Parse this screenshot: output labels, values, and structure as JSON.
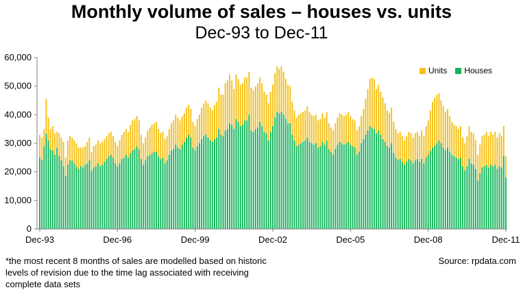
{
  "chart_data": {
    "type": "bar",
    "stacked": true,
    "title": "Monthly volume of sales – houses vs. units",
    "subtitle": "Dec-93 to Dec-11",
    "xlabel": "",
    "ylabel": "",
    "ylim": [
      0,
      60000
    ],
    "yticks": [
      "0",
      "10,000",
      "20,000",
      "30,000",
      "40,000",
      "50,000",
      "60,000"
    ],
    "x_ticks": [
      "Dec-93",
      "Dec-96",
      "Dec-99",
      "Dec-02",
      "Dec-05",
      "Dec-08",
      "Dec-11"
    ],
    "legend": [
      "Units",
      "Houses"
    ],
    "legend_position": "top-right",
    "grid": false,
    "colors": {
      "units": "#f5c018",
      "houses": "#14b45a",
      "axis": "#7f7f7f"
    },
    "months_start": "Dec-93",
    "months_end": "Dec-11",
    "series": [
      {
        "name": "Houses",
        "values": [
          25000,
          24000,
          29000,
          33500,
          31000,
          28000,
          27500,
          26000,
          28500,
          25500,
          24000,
          22000,
          18500,
          22500,
          24000,
          24000,
          23000,
          22000,
          21000,
          22000,
          21500,
          22500,
          23000,
          24000,
          20500,
          21500,
          22000,
          23000,
          22000,
          22500,
          23500,
          24500,
          25500,
          26000,
          25000,
          23000,
          22000,
          23000,
          24500,
          25000,
          26000,
          25000,
          26500,
          27500,
          28000,
          29000,
          28000,
          24500,
          22500,
          24000,
          25500,
          26000,
          26500,
          27000,
          27000,
          25500,
          24500,
          25000,
          23000,
          24000,
          26000,
          27500,
          28000,
          29500,
          28500,
          28000,
          29500,
          30500,
          32000,
          33000,
          32000,
          28500,
          27500,
          29000,
          30000,
          31500,
          32500,
          33000,
          32000,
          31000,
          30500,
          31500,
          32000,
          35000,
          33000,
          32500,
          34500,
          35000,
          37000,
          36500,
          35000,
          38500,
          37500,
          36000,
          36500,
          38000,
          38000,
          40000,
          34500,
          34000,
          35000,
          35500,
          37500,
          36000,
          34000,
          33500,
          31000,
          34000,
          36000,
          39000,
          41000,
          40500,
          41000,
          40000,
          38500,
          37000,
          37000,
          33000,
          31000,
          29000,
          29500,
          30000,
          30500,
          31000,
          32000,
          30500,
          30000,
          29500,
          30000,
          28500,
          29000,
          30500,
          29500,
          31000,
          28000,
          27000,
          26000,
          28000,
          29500,
          30500,
          30000,
          29500,
          30000,
          30500,
          29500,
          29000,
          28500,
          26000,
          27000,
          30000,
          31500,
          33000,
          34500,
          36000,
          35500,
          35000,
          33500,
          34500,
          33000,
          31500,
          30500,
          29000,
          28500,
          30000,
          26500,
          25000,
          24000,
          24500,
          23500,
          22500,
          23500,
          24500,
          24000,
          23000,
          24000,
          24500,
          23500,
          24500,
          23000,
          25000,
          26000,
          27500,
          28500,
          29000,
          30000,
          31000,
          30000,
          28500,
          27500,
          28500,
          27000,
          26000,
          25500,
          25000,
          24500,
          25000,
          22000,
          20500,
          22000,
          24500,
          23000,
          22500,
          21000,
          17000,
          19500,
          21500,
          22000,
          22500,
          21500,
          22500,
          22000,
          22500,
          21000,
          22000,
          21500,
          25500,
          18000
        ],
        "color": "#14b45a"
      },
      {
        "name": "Units",
        "values": [
          8000,
          8000,
          6000,
          12000,
          8000,
          7000,
          8500,
          7500,
          5500,
          8000,
          8000,
          8500,
          6500,
          8500,
          8500,
          8000,
          8000,
          8000,
          7500,
          6500,
          7000,
          6500,
          7500,
          8000,
          6500,
          7500,
          7500,
          8000,
          8000,
          8000,
          8000,
          8000,
          8000,
          8000,
          7500,
          7500,
          7000,
          8000,
          8500,
          9000,
          9000,
          9000,
          10000,
          10500,
          10500,
          10500,
          10000,
          8500,
          7500,
          8000,
          9000,
          9500,
          10000,
          10000,
          10500,
          9500,
          9000,
          9000,
          8500,
          8500,
          9000,
          9500,
          10000,
          10500,
          10500,
          10000,
          10000,
          10000,
          10500,
          10500,
          10000,
          9000,
          8500,
          9500,
          10000,
          11000,
          11500,
          12000,
          12000,
          11500,
          11000,
          12000,
          12500,
          14500,
          14000,
          14500,
          16500,
          17000,
          17000,
          15500,
          14000,
          15500,
          15000,
          14500,
          14500,
          15000,
          15000,
          15000,
          15000,
          14500,
          15000,
          15500,
          15500,
          15000,
          14000,
          13500,
          13000,
          14000,
          14500,
          15500,
          16000,
          15500,
          16000,
          15000,
          14000,
          13500,
          13000,
          11500,
          10500,
          10000,
          10500,
          10500,
          10500,
          10500,
          11000,
          10500,
          10000,
          10000,
          10000,
          9500,
          9500,
          10000,
          9500,
          10000,
          9000,
          8500,
          8500,
          9000,
          9500,
          10000,
          10000,
          10000,
          10000,
          10500,
          10000,
          9500,
          9500,
          8500,
          9000,
          9500,
          10500,
          12500,
          14500,
          16500,
          17500,
          17500,
          15500,
          16000,
          15000,
          14500,
          13500,
          12500,
          12000,
          12500,
          11000,
          10000,
          9500,
          9500,
          9000,
          8500,
          9000,
          9500,
          9500,
          9000,
          9500,
          9500,
          9000,
          10000,
          9500,
          11000,
          12000,
          14000,
          16000,
          17000,
          17000,
          16500,
          15000,
          14500,
          13500,
          13500,
          12500,
          11500,
          11000,
          11000,
          10500,
          11000,
          10000,
          9500,
          10500,
          11500,
          11000,
          11000,
          10000,
          9000,
          10000,
          11000,
          11000,
          11500,
          11000,
          11500,
          11000,
          11500,
          11000,
          11500,
          11000,
          10500,
          7500
        ],
        "color": "#f5c018"
      }
    ]
  },
  "footnote": "*the most recent 8 months of sales are modelled based on historic levels of revision due to the time lag associated with receiving complete data sets",
  "source": "Source: rpdata.com"
}
